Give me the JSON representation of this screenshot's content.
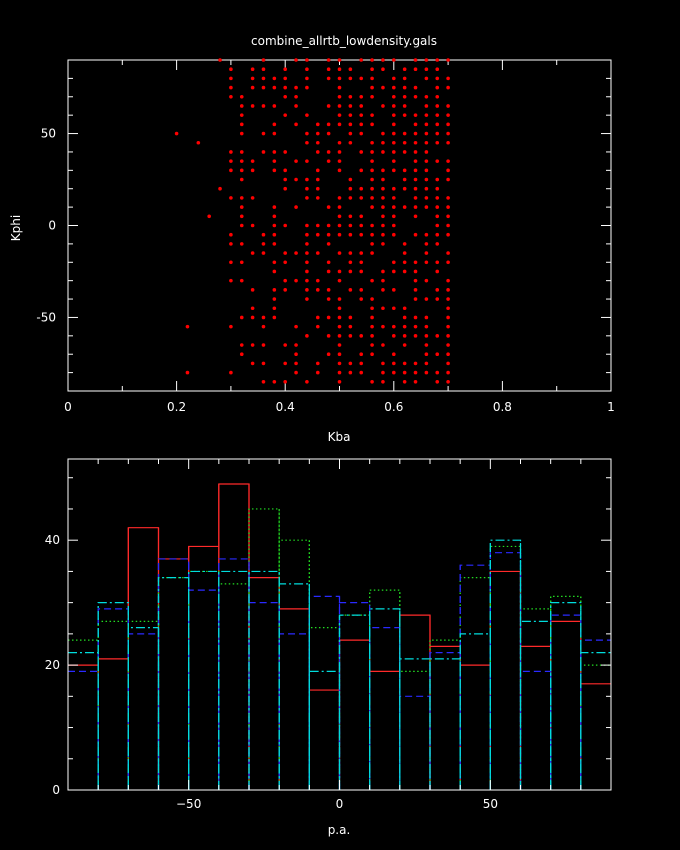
{
  "chart_data": [
    {
      "type": "scatter",
      "title": "combine_allrtb_lowdensity.gals",
      "xlabel": "Kba",
      "ylabel": "Kphi",
      "xlim": [
        0,
        1
      ],
      "ylim": [
        -90,
        90
      ],
      "xticks": [
        0,
        0.2,
        0.4,
        0.6,
        0.8,
        1
      ],
      "xtick_labels": [
        "0",
        "0.2",
        "0.4",
        "0.6",
        "0.8",
        "1"
      ],
      "yticks": [
        -50,
        0,
        50
      ],
      "ytick_labels": [
        "-50",
        "0",
        "50"
      ],
      "marker_color": "#ff0000",
      "x_grid": [
        0.3,
        0.32,
        0.34,
        0.36,
        0.38,
        0.4,
        0.42,
        0.44,
        0.46,
        0.48,
        0.5,
        0.52,
        0.54,
        0.56,
        0.58,
        0.6,
        0.62,
        0.64,
        0.66,
        0.68,
        0.7
      ],
      "y_grid": [
        -85,
        -80,
        -75,
        -70,
        -65,
        -60,
        -55,
        -50,
        -45,
        -40,
        -35,
        -30,
        -25,
        -20,
        -15,
        -10,
        -5,
        0,
        5,
        10,
        15,
        20,
        25,
        30,
        35,
        40,
        45,
        50,
        55,
        60,
        65,
        70,
        75,
        80,
        85,
        90
      ],
      "density": [
        0.4,
        0.45,
        0.5,
        0.42,
        0.5,
        0.45,
        0.55,
        0.62,
        0.55,
        0.6,
        0.68,
        0.62,
        0.68,
        0.75,
        0.72,
        0.78,
        0.8,
        0.78,
        0.8,
        0.78,
        0.75
      ],
      "extra_points": [
        [
          0.2,
          50
        ],
        [
          0.22,
          -55
        ],
        [
          0.22,
          -80
        ],
        [
          0.24,
          45
        ],
        [
          0.26,
          5
        ],
        [
          0.28,
          20
        ],
        [
          0.28,
          90
        ]
      ]
    },
    {
      "type": "histogram",
      "title": "",
      "xlabel": "p.a.",
      "ylabel": "",
      "xlim": [
        -90,
        90
      ],
      "ylim": [
        0,
        53
      ],
      "xticks": [
        -50,
        0,
        50
      ],
      "xtick_labels": [
        "−50",
        "0",
        "50"
      ],
      "yticks": [
        0,
        20,
        40
      ],
      "ytick_labels": [
        "0",
        "20",
        "40"
      ],
      "bin_edges": [
        -90,
        -80,
        -70,
        -60,
        -50,
        -40,
        -30,
        -20,
        -10,
        0,
        10,
        20,
        30,
        40,
        50,
        60,
        70,
        80,
        90
      ],
      "series": [
        {
          "color": "#ff2a2a",
          "dash": "",
          "values": [
            20,
            21,
            42,
            37,
            39,
            49,
            34,
            29,
            16,
            24,
            19,
            28,
            23,
            20,
            35,
            23,
            27,
            17
          ]
        },
        {
          "color": "#22dd22",
          "dash": "1.5,2.5",
          "values": [
            24,
            27,
            27,
            34,
            35,
            33,
            45,
            40,
            26,
            28,
            32,
            19,
            24,
            34,
            39,
            29,
            31,
            20
          ]
        },
        {
          "color": "#2a2aff",
          "dash": "7,4",
          "values": [
            19,
            29,
            25,
            37,
            32,
            37,
            30,
            25,
            31,
            30,
            26,
            15,
            22,
            36,
            38,
            19,
            28,
            24
          ]
        },
        {
          "color": "#00dddd",
          "dash": "9,3,2,3",
          "values": [
            22,
            30,
            26,
            34,
            35,
            35,
            35,
            33,
            19,
            28,
            29,
            21,
            21,
            25,
            40,
            27,
            30,
            22
          ]
        }
      ]
    }
  ]
}
